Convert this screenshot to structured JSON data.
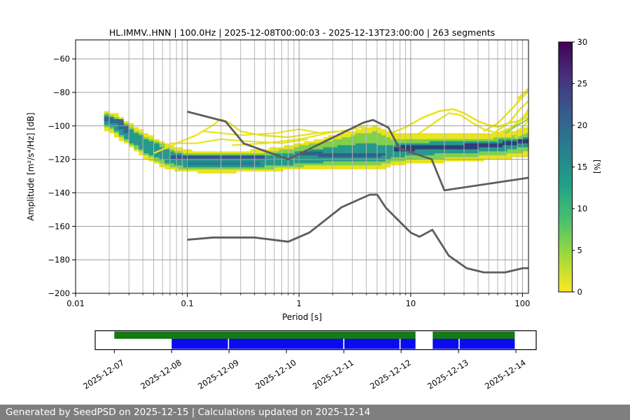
{
  "title": "HL.IMMV..HNN | 100.0Hz | 2025-12-08T00:00:03 - 2025-12-13T23:00:00 | 263 segments",
  "footer": {
    "text": "Generated by SeedPSD on 2025-12-15 | Calculations updated on 2025-12-14",
    "background": "#7f7f7f",
    "color": "#ffffff"
  },
  "chart_data": {
    "type": "heatmap",
    "title": "HL.IMMV..HNN | 100.0Hz | 2025-12-08T00:00:03 - 2025-12-13T23:00:00 | 263 segments",
    "xlabel": "Period [s]",
    "ylabel": "Amplitude [m²/s⁴/Hz] [dB]",
    "x_scale": "log",
    "xlim": [
      0.01,
      113
    ],
    "ylim": [
      -200,
      -48.5
    ],
    "grid": true,
    "grid_minor_color": "#b7b7b7",
    "grid_major_color": "#9c9c9c",
    "x_ticks": [
      {
        "p": 0.01,
        "label": "0.01"
      },
      {
        "p": 0.1,
        "label": "0.1"
      },
      {
        "p": 1,
        "label": "1"
      },
      {
        "p": 10,
        "label": "10"
      },
      {
        "p": 100,
        "label": "100"
      }
    ],
    "y_ticks": [
      {
        "db": -60,
        "label": "−60"
      },
      {
        "db": -80,
        "label": "−80"
      },
      {
        "db": -100,
        "label": "−100"
      },
      {
        "db": -120,
        "label": "−120"
      },
      {
        "db": -140,
        "label": "−140"
      },
      {
        "db": -160,
        "label": "−160"
      },
      {
        "db": -180,
        "label": "−180"
      },
      {
        "db": -200,
        "label": "−200"
      }
    ],
    "colorbar": {
      "label": "[%]",
      "min": 0,
      "max": 30,
      "ticks": [
        "0",
        "5",
        "10",
        "15",
        "20",
        "25",
        "30"
      ],
      "gradient_top_to_bottom": [
        "#440154",
        "#46327e",
        "#365c8d",
        "#277f8e",
        "#1fa187",
        "#4ac16d",
        "#a0da39",
        "#fde725"
      ]
    },
    "noise_models": {
      "color": "#5d5d5d",
      "high": [
        [
          0.1,
          -91.5
        ],
        [
          0.22,
          -97.4
        ],
        [
          0.32,
          -110.5
        ],
        [
          0.8,
          -120
        ],
        [
          3.8,
          -98
        ],
        [
          4.6,
          -96.5
        ],
        [
          6.3,
          -101
        ],
        [
          7.9,
          -113.5
        ],
        [
          15.4,
          -120
        ],
        [
          20,
          -138.5
        ],
        [
          113,
          -131
        ]
      ],
      "low": [
        [
          0.1,
          -168
        ],
        [
          0.17,
          -166.7
        ],
        [
          0.4,
          -166.7
        ],
        [
          0.8,
          -169.2
        ],
        [
          1.24,
          -163.7
        ],
        [
          2.4,
          -148.6
        ],
        [
          4.3,
          -141.1
        ],
        [
          5,
          -141.1
        ],
        [
          6,
          -149
        ],
        [
          10,
          -163.8
        ],
        [
          12,
          -166.2
        ],
        [
          15.6,
          -162.1
        ],
        [
          21.9,
          -177.5
        ],
        [
          31.6,
          -185
        ],
        [
          45,
          -187.5
        ],
        [
          70,
          -187.5
        ],
        [
          101,
          -185
        ],
        [
          113,
          -185
        ]
      ]
    },
    "ppsd_band": {
      "periods": [
        0.018,
        0.022,
        0.03,
        0.045,
        0.07,
        0.1,
        0.15,
        0.25,
        0.4,
        0.6,
        0.8,
        1.0,
        1.5,
        2.2,
        3.2,
        4.5,
        6,
        8,
        12,
        18,
        30,
        50,
        80,
        113
      ],
      "layers": [
        {
          "color": "#e8e41f",
          "top": [
            -91,
            -93,
            -99,
            -106,
            -112,
            -114.5,
            -115,
            -115,
            -114.5,
            -113,
            -111.5,
            -110,
            -107.5,
            -104.5,
            -102,
            -99.5,
            -103,
            -104.5,
            -104.5,
            -104,
            -104,
            -104.5,
            -103,
            -100.5
          ],
          "bot": [
            -101.5,
            -104,
            -111,
            -119.5,
            -126,
            -127.5,
            -128,
            -128,
            -127.5,
            -127,
            -126.5,
            -126,
            -125.5,
            -125.5,
            -126,
            -126.5,
            -125.5,
            -123.5,
            -122.5,
            -122,
            -121.5,
            -120.5,
            -119.5,
            -118.5
          ]
        },
        {
          "color": "#7fd14b",
          "top": [
            -92.5,
            -94.5,
            -101,
            -108,
            -114,
            -116.5,
            -117,
            -117,
            -116.5,
            -115,
            -113.5,
            -112,
            -110,
            -107.5,
            -105,
            -103.5,
            -107,
            -108.5,
            -108,
            -107.5,
            -107.5,
            -107.5,
            -106,
            -104
          ],
          "bot": [
            -100,
            -102.5,
            -109.5,
            -117.5,
            -124,
            -126,
            -126.5,
            -126.5,
            -126,
            -125.5,
            -125,
            -124.5,
            -123.5,
            -123.5,
            -123.5,
            -123.5,
            -123,
            -121,
            -120,
            -119.5,
            -119,
            -118,
            -117,
            -115.5
          ]
        },
        {
          "color": "#26998a",
          "top": [
            -93.5,
            -95.5,
            -102,
            -109.5,
            -115.5,
            -118,
            -118.5,
            -118.5,
            -118,
            -117,
            -116,
            -115,
            -113.5,
            -112,
            -111,
            -111,
            -112,
            -110.5,
            -110,
            -109.5,
            -109.5,
            -109,
            -108,
            -106.5
          ],
          "bot": [
            -99,
            -101,
            -108,
            -116,
            -122,
            -124.5,
            -125,
            -125,
            -124.5,
            -124,
            -123.5,
            -123,
            -122,
            -121.5,
            -121,
            -121,
            -121,
            -118.5,
            -117.5,
            -117,
            -116.5,
            -115.5,
            -114.5,
            -112.5
          ]
        }
      ],
      "cores": [
        {
          "color": "#2f3e78",
          "periods": [
            7,
            9,
            12,
            18,
            30,
            50,
            80,
            113
          ],
          "top": [
            -112.3,
            -111.9,
            -111.8,
            -111.5,
            -111,
            -110.5,
            -109,
            -107.5
          ],
          "bot": [
            -115.3,
            -114.9,
            -114.6,
            -114.3,
            -113.8,
            -113.3,
            -111.8,
            -110.3
          ]
        },
        {
          "color": "#315b8c",
          "periods": [
            0.07,
            0.12,
            0.3,
            0.5
          ],
          "top": [
            -117.4,
            -117.6,
            -117.6,
            -117.2
          ],
          "bot": [
            -119.6,
            -119.9,
            -119.9,
            -119.4
          ]
        },
        {
          "color": "#277f8e",
          "periods": [
            0.1,
            0.2,
            0.45
          ],
          "top": [
            -121.6,
            -121.8,
            -121.6
          ],
          "bot": [
            -123.2,
            -123.5,
            -123.2
          ]
        },
        {
          "color": "#2e628c",
          "periods": [
            1.0,
            1.8,
            3.0,
            4.5,
            6
          ],
          "top": [
            -115.6,
            -115.9,
            -116.2,
            -116.4,
            -116
          ],
          "bot": [
            -118,
            -118.3,
            -118.6,
            -118.8,
            -118.2
          ]
        },
        {
          "color": "#31688e",
          "periods": [
            0.018,
            0.024,
            0.03
          ],
          "top": [
            -94.5,
            -96.5,
            -102.5
          ],
          "bot": [
            -96.5,
            -99,
            -105
          ]
        }
      ]
    },
    "outlier_streaks": [
      {
        "color": "#e8e41f",
        "width": 2.4,
        "points": [
          [
            0.05,
            -116
          ],
          [
            0.08,
            -111
          ],
          [
            0.12,
            -106
          ],
          [
            0.17,
            -100
          ],
          [
            0.2,
            -96.5
          ],
          [
            0.24,
            -98
          ],
          [
            0.3,
            -103
          ],
          [
            0.45,
            -106
          ],
          [
            0.8,
            -107
          ],
          [
            1.4,
            -105
          ],
          [
            2.2,
            -103.5
          ]
        ]
      },
      {
        "color": "#e8e41f",
        "width": 2.2,
        "points": [
          [
            0.07,
            -110
          ],
          [
            0.12,
            -110.5
          ],
          [
            0.2,
            -108
          ],
          [
            0.35,
            -109
          ],
          [
            0.7,
            -110
          ],
          [
            1.2,
            -108
          ]
        ]
      },
      {
        "color": "#e8e41f",
        "width": 2.2,
        "points": [
          [
            0.25,
            -112
          ],
          [
            0.5,
            -110.5
          ],
          [
            1.0,
            -107.5
          ],
          [
            1.8,
            -105
          ],
          [
            3.0,
            -101.5
          ],
          [
            4.2,
            -99.5
          ]
        ]
      },
      {
        "color": "#e8e41f",
        "width": 2.2,
        "points": [
          [
            0.14,
            -103
          ],
          [
            0.3,
            -106
          ],
          [
            0.6,
            -104
          ],
          [
            1.0,
            -102.5
          ],
          [
            1.6,
            -104
          ]
        ]
      },
      {
        "color": "#e8e41f",
        "width": 2.6,
        "points": [
          [
            6,
            -106
          ],
          [
            9,
            -101
          ],
          [
            13,
            -95
          ],
          [
            18,
            -91
          ],
          [
            24,
            -90
          ],
          [
            30,
            -92.5
          ],
          [
            40,
            -97
          ],
          [
            50,
            -100
          ],
          [
            60,
            -101
          ],
          [
            75,
            -99
          ],
          [
            90,
            -97
          ],
          [
            113,
            -95
          ]
        ]
      },
      {
        "color": "#e8e41f",
        "width": 2.4,
        "points": [
          [
            8,
            -108
          ],
          [
            12,
            -104
          ],
          [
            17,
            -97
          ],
          [
            22,
            -93
          ],
          [
            28,
            -94
          ],
          [
            36,
            -98
          ],
          [
            45,
            -102
          ],
          [
            60,
            -104
          ],
          [
            80,
            -101
          ],
          [
            100,
            -96
          ],
          [
            113,
            -92
          ]
        ]
      },
      {
        "color": "#e8e41f",
        "width": 3.4,
        "points": [
          [
            90,
            -84
          ],
          [
            113,
            -78
          ]
        ]
      },
      {
        "color": "#e8e41f",
        "width": 2.6,
        "points": [
          [
            45,
            -103
          ],
          [
            60,
            -98
          ],
          [
            80,
            -90
          ],
          [
            100,
            -83
          ],
          [
            113,
            -79
          ]
        ]
      },
      {
        "color": "#e8e41f",
        "width": 2.4,
        "points": [
          [
            55,
            -104
          ],
          [
            75,
            -98
          ],
          [
            95,
            -90
          ],
          [
            113,
            -85
          ]
        ]
      },
      {
        "color": "#e8e41f",
        "width": 2.4,
        "points": [
          [
            65,
            -105
          ],
          [
            85,
            -100
          ],
          [
            105,
            -94
          ],
          [
            113,
            -90
          ]
        ]
      },
      {
        "color": "#e8e41f",
        "width": 2.2,
        "points": [
          [
            75,
            -106
          ],
          [
            95,
            -102
          ],
          [
            113,
            -97
          ]
        ]
      },
      {
        "color": "#e8e41f",
        "width": 2.2,
        "points": [
          [
            85,
            -107
          ],
          [
            105,
            -104
          ],
          [
            113,
            -101
          ]
        ]
      },
      {
        "color": "#7fd14b",
        "width": 2.2,
        "points": [
          [
            70,
            -104
          ],
          [
            90,
            -100
          ],
          [
            113,
            -96
          ]
        ]
      }
    ],
    "coverage": {
      "dates": [
        "2025-12-07",
        "2025-12-08",
        "2025-12-09",
        "2025-12-10",
        "2025-12-11",
        "2025-12-12",
        "2025-12-13",
        "2025-12-14"
      ],
      "green": {
        "color": "#157a15",
        "segments": [
          [
            0,
            5.25
          ],
          [
            5.55,
            6.98
          ]
        ]
      },
      "blue": {
        "color": "#0b0bf0",
        "segments": [
          [
            1.0,
            1.98
          ],
          [
            2.0,
            3.99
          ],
          [
            4.01,
            4.97
          ],
          [
            4.99,
            5.25
          ],
          [
            5.55,
            6.0
          ],
          [
            6.02,
            6.98
          ]
        ]
      }
    }
  }
}
